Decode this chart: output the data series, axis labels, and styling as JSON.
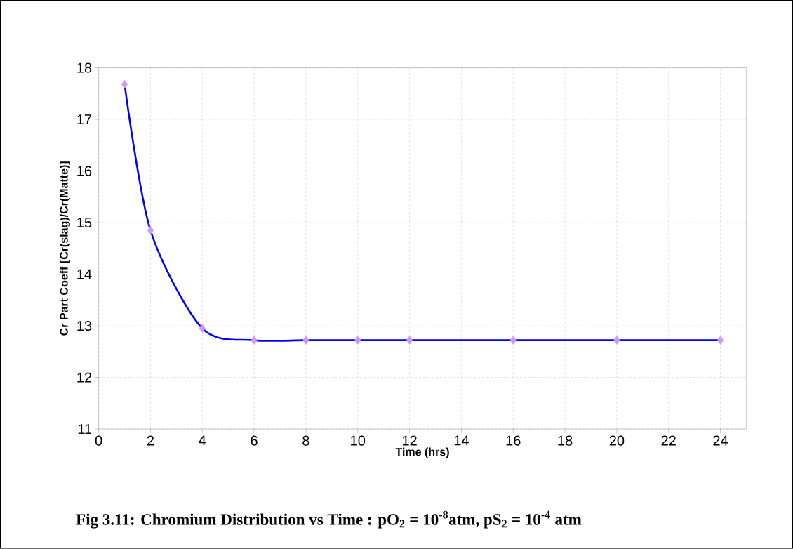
{
  "chart_data": {
    "type": "line",
    "xlabel": "Time (hrs)",
    "ylabel": "Cr Part Coeff [Cr(slag)/Cr(Matte)]",
    "annotations": [
      "Fig 3.11: Chromium Distribution vs Time : pO$_{2}$ = 10$^{-8}$atm, pS$_{2}$ = 10$^{-4}$ atm"
    ],
    "x": [
      1,
      2,
      4,
      6,
      8,
      10,
      12,
      16,
      20,
      24
    ],
    "series": [
      {
        "color": "#0000ff",
        "colors": [
          "#cc99ff",
          "#cc99ff",
          "#cc99ff",
          "#cc99ff",
          "#cc99ff",
          "#cc99ff",
          "#cc99ff",
          "#cc99ff",
          "#cc99ff",
          "#cc99ff"
        ],
        "values": [
          17.68,
          14.85,
          12.95,
          12.72,
          12.72,
          12.72,
          12.72,
          12.72,
          12.72,
          12.72
        ]
      }
    ],
    "xlim": [
      0,
      25
    ],
    "ylim": [
      11,
      18
    ],
    "xticks": [
      0,
      2,
      4,
      6,
      8,
      10,
      12,
      14,
      16,
      18,
      20,
      22,
      24
    ],
    "yticks": [
      11,
      12,
      13,
      14,
      15,
      16,
      17,
      18
    ],
    "grid": true,
    "marker": "diamond",
    "line_style": "solid"
  }
}
